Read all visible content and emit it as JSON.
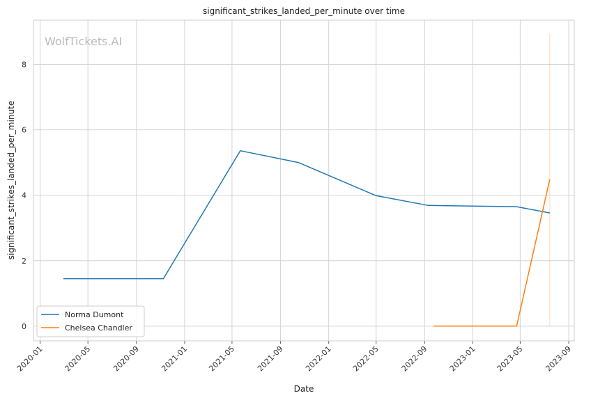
{
  "chart_data": {
    "type": "line",
    "title": "significant_strikes_landed_per_minute over time",
    "xlabel": "Date",
    "ylabel": "significant_strikes_landed_per_minute",
    "watermark": "WolfTickets.AI",
    "x_ticks": [
      "2020-01",
      "2020-05",
      "2020-09",
      "2021-01",
      "2021-05",
      "2021-09",
      "2022-01",
      "2022-05",
      "2022-09",
      "2023-01",
      "2023-05",
      "2023-09"
    ],
    "y_ticks": [
      0,
      2,
      4,
      6,
      8
    ],
    "xlim": [
      "2019-12-15",
      "2023-09-15"
    ],
    "ylim": [
      -0.45,
      9.35
    ],
    "grid": true,
    "legend_position": "lower-left",
    "series": [
      {
        "name": "Norma Dumont",
        "color": "#1f77b4",
        "x": [
          "2020-02-29",
          "2020-11-08",
          "2021-05-22",
          "2021-10-16",
          "2022-04-30",
          "2022-09-10",
          "2023-04-22",
          "2023-07-15"
        ],
        "y": [
          1.45,
          1.45,
          5.36,
          5.0,
          3.99,
          3.69,
          3.65,
          3.46
        ]
      },
      {
        "name": "Chelsea Chandler",
        "color": "#ff7f0e",
        "x": [
          "2022-09-24",
          "2023-04-22",
          "2023-07-15"
        ],
        "y": [
          0.0,
          0.0,
          4.49
        ]
      }
    ],
    "marker_line": {
      "x": "2023-07-15",
      "y_range": [
        0,
        8.95
      ],
      "color": "#ff7f0e"
    }
  }
}
